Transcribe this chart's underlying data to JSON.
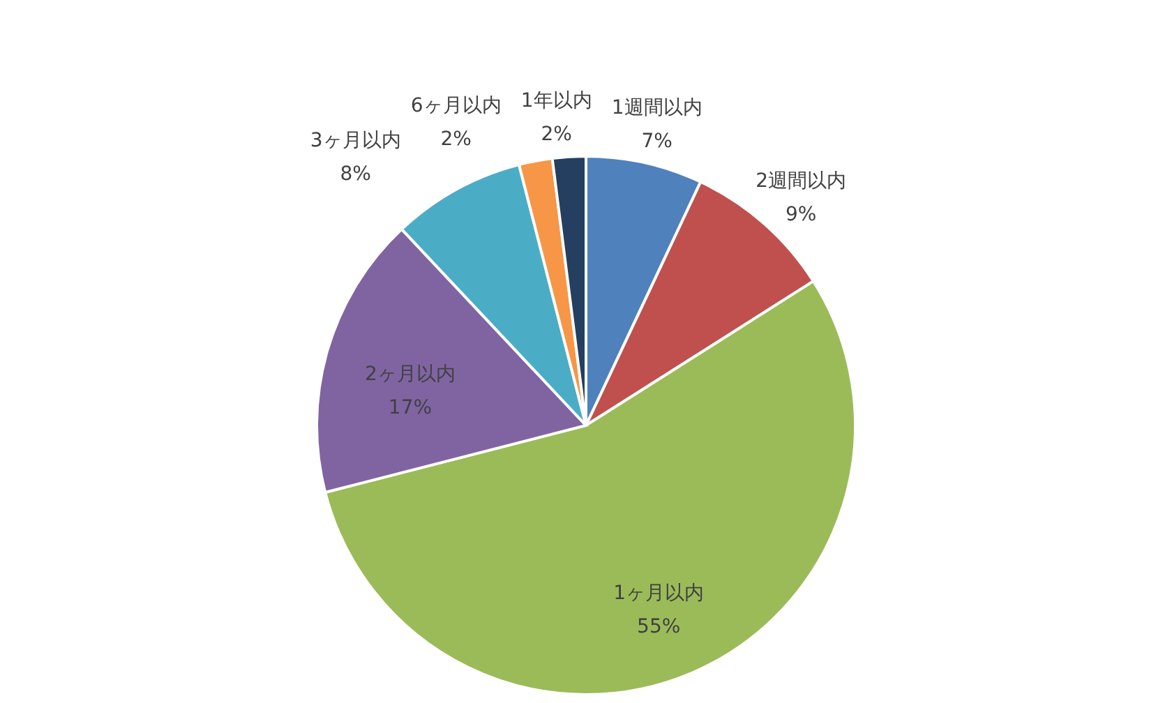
{
  "chart_data": {
    "type": "pie",
    "categories": [
      "1週間以内",
      "2週間以内",
      "1ヶ月以内",
      "2ヶ月以内",
      "3ヶ月以内",
      "6ヶ月以内",
      "1年以内"
    ],
    "values": [
      7,
      9,
      55,
      17,
      8,
      2,
      2
    ],
    "colors": [
      "#4f81bd",
      "#c0504d",
      "#9bbb59",
      "#8064a2",
      "#4bacc6",
      "#f79646",
      "#243f60"
    ],
    "value_labels": [
      "7%",
      "9%",
      "55%",
      "17%",
      "8%",
      "2%",
      "2%"
    ]
  }
}
